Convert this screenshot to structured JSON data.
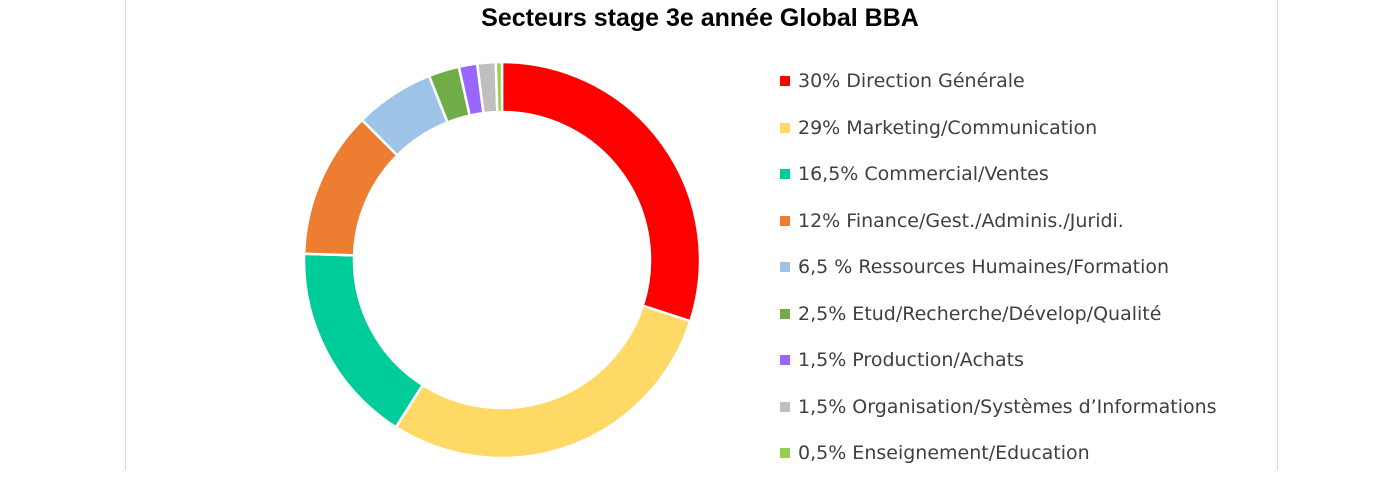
{
  "chart_data": {
    "type": "pie",
    "variant": "donut",
    "title": "Secteurs stage 3e année Global BBA",
    "legend_position": "right",
    "slices": [
      {
        "label": "30% Direction Générale",
        "value": 30,
        "color": "#ff0000"
      },
      {
        "label": "29% Marketing/Communication",
        "value": 29,
        "color": "#ffd966"
      },
      {
        "label": "16,5% Commercial/Ventes",
        "value": 16.5,
        "color": "#00cc99"
      },
      {
        "label": "12% Finance/Gest./Adminis./Juridi.",
        "value": 12,
        "color": "#ed7d31"
      },
      {
        "label": "6,5 % Ressources Humaines/Formation",
        "value": 6.5,
        "color": "#9dc3e6"
      },
      {
        "label": "2,5% Etud/Recherche/Dévelop/Qualité",
        "value": 2.5,
        "color": "#70ad47"
      },
      {
        "label": "1,5% Production/Achats",
        "value": 1.5,
        "color": "#9966ff"
      },
      {
        "label": "1,5% Organisation/Systèmes d’Informations",
        "value": 1.5,
        "color": "#bfbfbf"
      },
      {
        "label": "0,5% Enseignement/Education",
        "value": 0.5,
        "color": "#92d050"
      }
    ]
  }
}
